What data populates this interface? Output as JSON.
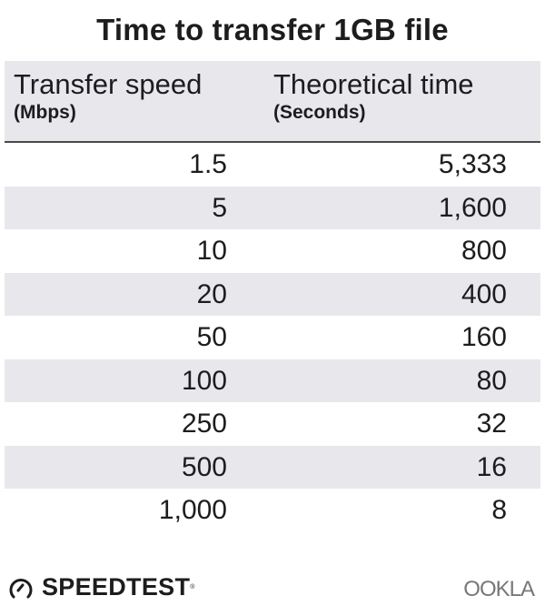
{
  "chart_data": {
    "type": "table",
    "title": "Time to transfer 1GB file",
    "columns": [
      {
        "label": "Transfer speed",
        "unit": "(Mbps)"
      },
      {
        "label": "Theoretical time",
        "unit": "(Seconds)"
      }
    ],
    "rows": [
      [
        "1.5",
        "5,333"
      ],
      [
        "5",
        "1,600"
      ],
      [
        "10",
        "800"
      ],
      [
        "20",
        "400"
      ],
      [
        "50",
        "160"
      ],
      [
        "100",
        "80"
      ],
      [
        "250",
        "32"
      ],
      [
        "500",
        "16"
      ],
      [
        "1,000",
        "8"
      ]
    ],
    "colors": {
      "stripe": "#e8e8ec",
      "text": "#1d1d1f"
    }
  },
  "footer": {
    "speedtest_logo": "SPEEDTEST",
    "speedtest_icon": "gauge-icon",
    "ookla_logo": "OOKLA"
  }
}
